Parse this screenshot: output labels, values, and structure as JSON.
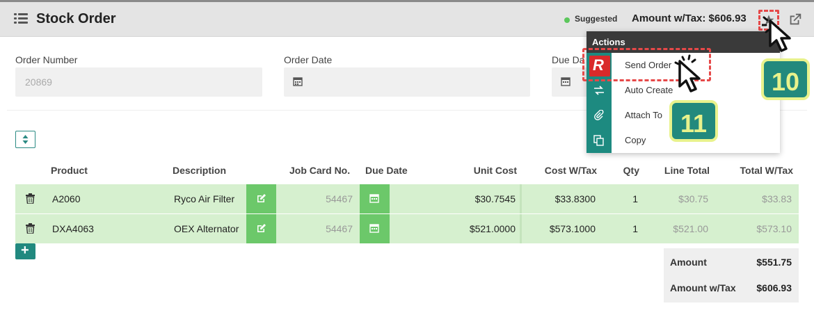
{
  "header": {
    "title": "Stock Order",
    "suggested_label": "Suggested",
    "amount_label": "Amount w/Tax: $606.93"
  },
  "form": {
    "order_number_label": "Order Number",
    "order_number_value": "20869",
    "order_date_label": "Order Date",
    "order_date_value": "",
    "due_date_label": "Due Da"
  },
  "table": {
    "headers": [
      "Product",
      "Description",
      "Job Card No.",
      "Due Date",
      "Unit Cost",
      "Cost W/Tax",
      "Qty",
      "Line Total",
      "Total W/Tax"
    ],
    "rows": [
      {
        "product": "A2060",
        "description": "Ryco Air Filter",
        "job_card": "54467",
        "unit_cost": "$30.7545",
        "cost_tax": "$33.8300",
        "qty": "1",
        "line_total": "$30.75",
        "total_tax": "$33.83"
      },
      {
        "product": "DXA4063",
        "description": "OEX Alternator",
        "job_card": "54467",
        "unit_cost": "$521.0000",
        "cost_tax": "$573.1000",
        "qty": "1",
        "line_total": "$521.00",
        "total_tax": "$573.10"
      }
    ]
  },
  "totals": {
    "amount_label": "Amount",
    "amount_value": "$551.75",
    "amount_tax_label": "Amount w/Tax",
    "amount_tax_value": "$606.93"
  },
  "actions_menu": {
    "title": "Actions",
    "items": [
      {
        "label": "Send Order",
        "icon": "send-logo-icon"
      },
      {
        "label": "Auto Create",
        "icon": "swap-arrows-icon"
      },
      {
        "label": "Attach To",
        "icon": "paperclip-icon"
      },
      {
        "label": "Copy",
        "icon": "copy-icon"
      }
    ]
  },
  "badges": {
    "step_10": "10",
    "step_11": "11"
  },
  "colors": {
    "accent_teal": "#1d8a80",
    "row_green": "#d6f0cf",
    "button_green": "#6cc86a",
    "highlight_red": "#e64848",
    "badge_yellow": "#e8f28c"
  }
}
